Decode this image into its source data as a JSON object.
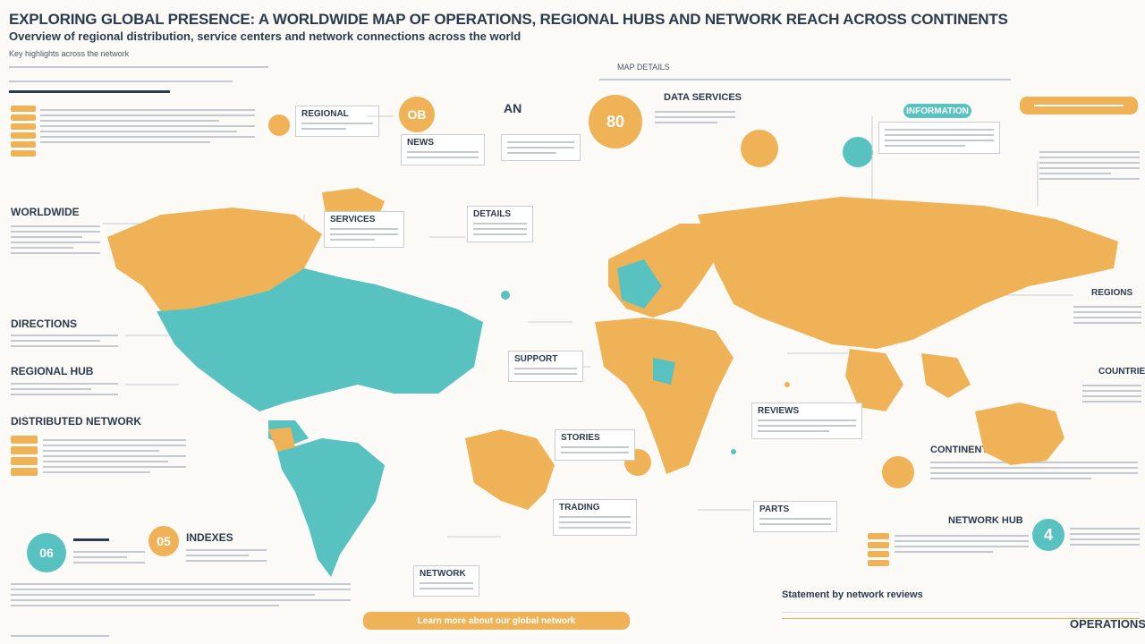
{
  "header": {
    "title": "EXPLORING GLOBAL PRESENCE: A WORLDWIDE MAP OF OPERATIONS, REGIONAL HUBS AND NETWORK REACH ACROSS CONTINENTS",
    "subtitle": "Overview of regional distribution, service centers and network connections across the world"
  },
  "left_panel": {
    "intro": "Key highlights across the network",
    "section1": "WORLDWIDE",
    "section2": "DIRECTIONS",
    "section3": "REGIONAL HUB",
    "section4": "DISTRIBUTED NETWORK"
  },
  "top_labels": {
    "left_badge": "AN",
    "orange_circle": "OB",
    "dark_label": "DATA SERVICES",
    "right_header": "MAP DETAILS",
    "callout_top": "REGIONAL",
    "callout_mid": "NEWS"
  },
  "callouts": {
    "north_america": "SERVICES",
    "europe": "DETAILS",
    "africa": "SUPPORT",
    "asia": "REVIEWS",
    "south_america": "STORIES",
    "oceania": "TRADING",
    "india": "PARTS",
    "east": "NETWORK"
  },
  "bottom": {
    "badge_left": "06",
    "badge_left2": "05",
    "label_left": "INDEXES",
    "bottom_pill": "Learn more about our global network",
    "right_footer": "Statement by network reviews",
    "right_label": "CONTINENTAL HUB",
    "brand": "OPERATIONS"
  },
  "right_panel": {
    "section1": "REGIONS",
    "section2": "COUNTRIES",
    "section3": "CONTINENTAL REGIONS",
    "section4": "NETWORK HUB",
    "badge": "4",
    "badge_pct": "80",
    "pill_label": "INFORMATION"
  },
  "colors": {
    "orange": "#f0b257",
    "teal": "#58c2c0",
    "text": "#2c3a4e",
    "background": "#fbfaf6"
  }
}
